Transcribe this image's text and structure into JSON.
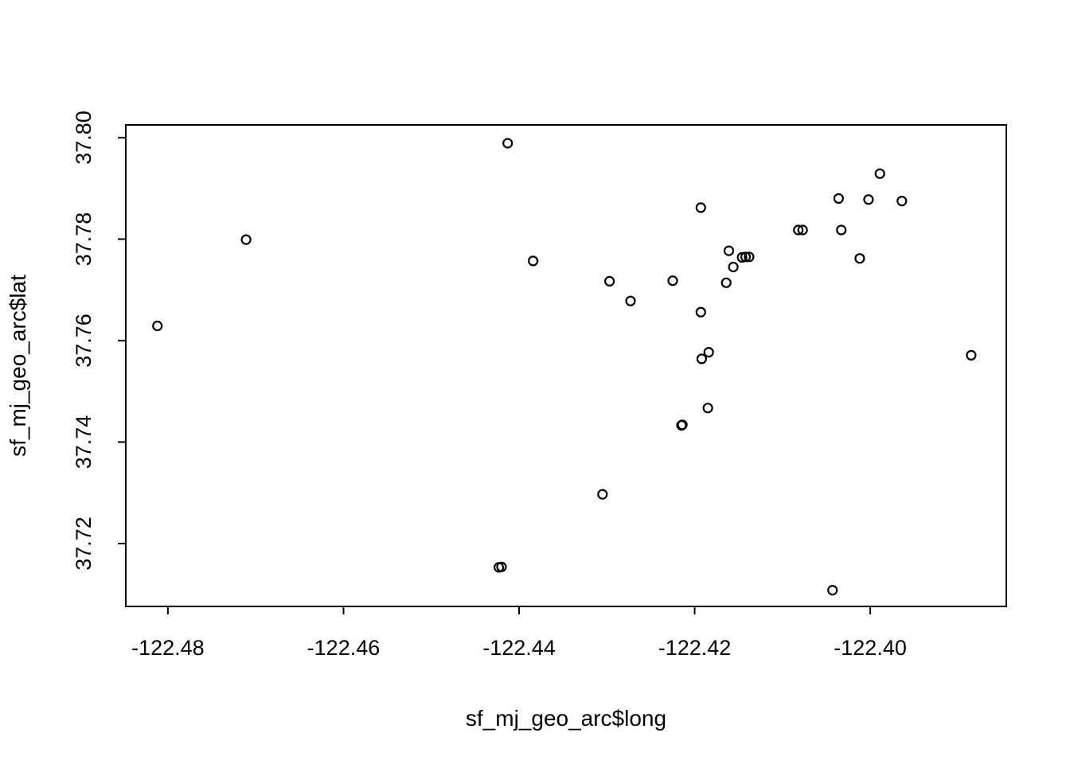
{
  "figure": {
    "background": "#ffffff",
    "foreground": "#000000"
  },
  "chart_data": {
    "type": "scatter",
    "title": "",
    "xlabel": "sf_mj_geo_arc$long",
    "ylabel": "sf_mj_geo_arc$lat",
    "xlim": [
      -122.4848,
      -122.3845
    ],
    "ylim": [
      37.7076,
      37.8025
    ],
    "x_ticks": [
      -122.48,
      -122.46,
      -122.44,
      -122.42,
      -122.4
    ],
    "x_tick_labels": [
      "-122.48",
      "-122.46",
      "-122.44",
      "-122.42",
      "-122.40"
    ],
    "y_ticks": [
      37.72,
      37.74,
      37.76,
      37.78,
      37.8
    ],
    "y_tick_labels": [
      "37.72",
      "37.74",
      "37.76",
      "37.78",
      "37.80"
    ],
    "grid": false,
    "legend": "none",
    "marker": {
      "shape": "open-circle",
      "color": "#000000",
      "radius": 5.5,
      "stroke_width": 2.2
    },
    "points": [
      [
        -122.4812,
        37.7629
      ],
      [
        -122.4711,
        37.7799
      ],
      [
        -122.4413,
        37.7989
      ],
      [
        -122.4384,
        37.7757
      ],
      [
        -122.4297,
        37.7717
      ],
      [
        -122.4273,
        37.7678
      ],
      [
        -122.4225,
        37.7718
      ],
      [
        -122.4193,
        37.7862
      ],
      [
        -122.4161,
        37.7777
      ],
      [
        -122.4146,
        37.7764
      ],
      [
        -122.4142,
        37.7765
      ],
      [
        -122.4138,
        37.7765
      ],
      [
        -122.4156,
        37.7745
      ],
      [
        -122.4164,
        37.7714
      ],
      [
        -122.4193,
        37.7656
      ],
      [
        -122.4192,
        37.7564
      ],
      [
        -122.4184,
        37.7577
      ],
      [
        -122.4185,
        37.7467
      ],
      [
        -122.4214,
        37.7434
      ],
      [
        -122.4215,
        37.7433
      ],
      [
        -122.4305,
        37.7297
      ],
      [
        -122.4423,
        37.7153
      ],
      [
        -122.442,
        37.7154
      ],
      [
        -122.4043,
        37.7108
      ],
      [
        -122.3989,
        37.7929
      ],
      [
        -122.4036,
        37.788
      ],
      [
        -122.4002,
        37.7878
      ],
      [
        -122.3964,
        37.7875
      ],
      [
        -122.4082,
        37.7818
      ],
      [
        -122.4077,
        37.7818
      ],
      [
        -122.4033,
        37.7818
      ],
      [
        -122.4012,
        37.7762
      ],
      [
        -122.3885,
        37.7571
      ]
    ]
  }
}
